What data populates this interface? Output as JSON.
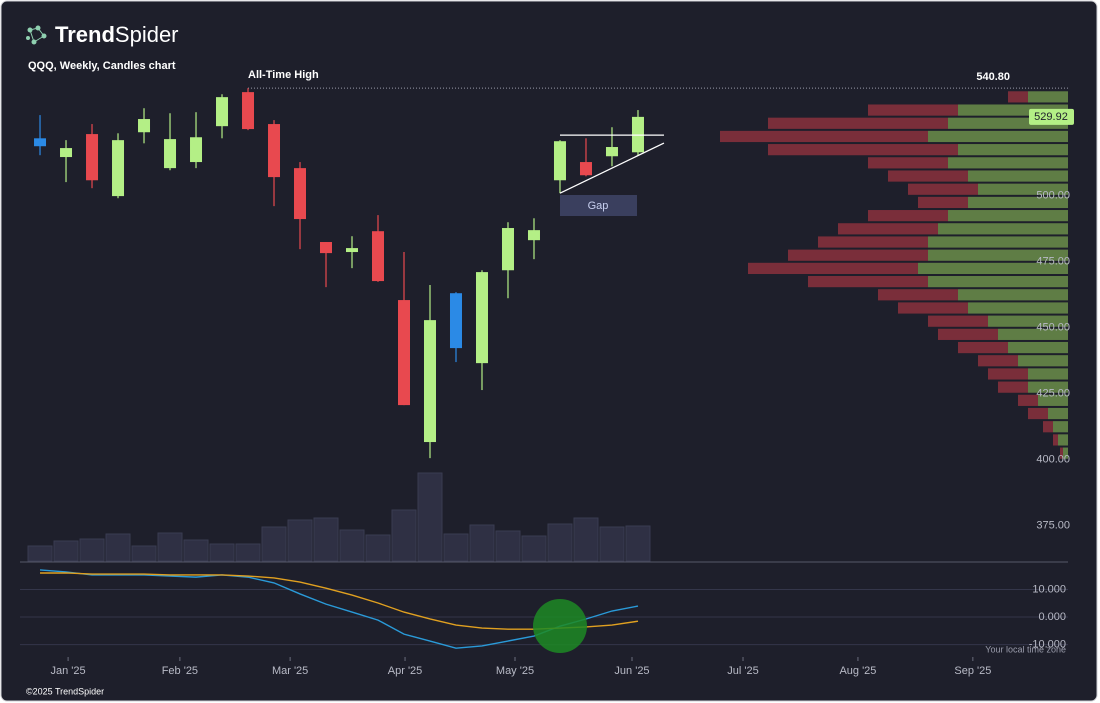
{
  "logo": {
    "bold": "Trend",
    "light": "Spider"
  },
  "footer": "©2025 TrendSpider",
  "timezone": "Your local time zone",
  "chart_data": {
    "type": "candlestick",
    "title": "QQQ, Weekly, Candles chart",
    "x": [
      0,
      1,
      2,
      3,
      4,
      5,
      6,
      7,
      8,
      9,
      10,
      11,
      12,
      13,
      14,
      15,
      16,
      17,
      18,
      19,
      20,
      21,
      22,
      23
    ],
    "open": [
      518.8,
      514.7,
      523.4,
      499.9,
      524.1,
      510.5,
      512.8,
      526.4,
      539.3,
      527.2,
      510.5,
      482.5,
      478.7,
      486.6,
      460.5,
      406.7,
      442.3,
      436.6,
      471.8,
      483.2,
      505.9,
      512.8,
      515.0,
      516.5
    ],
    "high": [
      530.6,
      521.1,
      527.2,
      523.7,
      533.2,
      531.3,
      531.7,
      538.5,
      540.8,
      528.7,
      512.8,
      482.5,
      484.7,
      492.7,
      478.7,
      466.2,
      463.5,
      471.8,
      490.0,
      491.5,
      521.1,
      521.8,
      526.0,
      532.5
    ],
    "low": [
      515.4,
      505.2,
      502.9,
      499.1,
      519.9,
      509.7,
      510.5,
      521.8,
      524.9,
      496.1,
      479.8,
      465.4,
      472.6,
      467.4,
      420.7,
      400.6,
      437.0,
      426.4,
      461.2,
      476.0,
      501.0,
      507.4,
      511.2,
      515.4
    ],
    "close": [
      521.8,
      518.1,
      505.9,
      521.1,
      529.1,
      521.5,
      522.2,
      537.4,
      525.3,
      507.1,
      491.2,
      478.3,
      480.2,
      467.7,
      420.7,
      452.9,
      463.1,
      471.1,
      487.8,
      487.0,
      520.7,
      507.8,
      518.5,
      529.92
    ],
    "up_color": "#b4ef86",
    "down_color": "#e8494f",
    "highlight_color": "#2b8ae6",
    "highlighted": [
      0,
      16
    ],
    "xlim": [
      -0.77,
      39.54
    ],
    "xticks": [
      {
        "value": 1.08,
        "label": "Jan '25"
      },
      {
        "value": 5.38,
        "label": "Feb '25"
      },
      {
        "value": 9.62,
        "label": "Mar '25"
      },
      {
        "value": 14.04,
        "label": "Apr '25"
      },
      {
        "value": 18.27,
        "label": "May '25"
      },
      {
        "value": 22.77,
        "label": "Jun '25"
      },
      {
        "value": 27.04,
        "label": "Jul '25"
      },
      {
        "value": 31.46,
        "label": "Aug '25"
      },
      {
        "value": 35.88,
        "label": "Sep '25"
      }
    ],
    "ylim": [
      362,
      542
    ],
    "yticks": [
      {
        "value": 375,
        "label": "375.00"
      },
      {
        "value": 400,
        "label": "400.00"
      },
      {
        "value": 425,
        "label": "425.00"
      },
      {
        "value": 450,
        "label": "450.00"
      },
      {
        "value": 475,
        "label": "475.00"
      },
      {
        "value": 500,
        "label": "500.00"
      }
    ],
    "ath": {
      "label": "All-Time High",
      "value": 540.8,
      "value_label": "540.80"
    },
    "last_price": 529.92,
    "gap_label": "Gap",
    "trendlines": [
      {
        "x": [
          20,
          24
        ],
        "y": [
          523.0,
          523.0
        ]
      },
      {
        "x": [
          20,
          24
        ],
        "y": [
          501.0,
          520.0
        ]
      }
    ],
    "volume": {
      "values": [
        15,
        20,
        22,
        27,
        15,
        28,
        21,
        17,
        17,
        34,
        41,
        43,
        31,
        26,
        51,
        88,
        27,
        36,
        30,
        25,
        37,
        43,
        34,
        35
      ],
      "ylim": [
        0,
        100
      ],
      "color": "#2f3044"
    },
    "profile": {
      "levels": [
        537.5,
        532.5,
        527.5,
        522.5,
        517.5,
        512.5,
        507.5,
        502.5,
        497.5,
        492.5,
        487.5,
        482.5,
        477.5,
        472.5,
        467.5,
        462.5,
        457.5,
        452.5,
        447.5,
        442.5,
        437.5,
        432.5,
        427.5,
        422.5,
        417.5,
        412.5,
        407.5,
        402.5
      ],
      "up": [
        40,
        110,
        120,
        140,
        110,
        120,
        100,
        90,
        100,
        120,
        130,
        140,
        140,
        150,
        140,
        110,
        100,
        80,
        70,
        60,
        50,
        40,
        40,
        30,
        20,
        15,
        10,
        5
      ],
      "down": [
        20,
        90,
        180,
        208,
        190,
        80,
        80,
        70,
        50,
        80,
        100,
        110,
        140,
        170,
        120,
        80,
        70,
        60,
        60,
        50,
        40,
        40,
        30,
        20,
        20,
        10,
        5,
        3
      ],
      "xlim": [
        0,
        400
      ],
      "up_color": "#5f7d45",
      "down_color": "#7a2e3a"
    },
    "indicator": {
      "ylim": [
        -14.5,
        18.9
      ],
      "yticks": [
        {
          "value": 10,
          "label": "10.000"
        },
        {
          "value": 0,
          "label": "0.000"
        },
        {
          "value": -10,
          "label": "-10.000"
        }
      ],
      "series": [
        {
          "color": "#2a9ad8",
          "values": [
            17.1,
            16.4,
            15.3,
            15.3,
            15.3,
            14.9,
            14.5,
            15.3,
            14.5,
            12.4,
            8.4,
            4.7,
            1.8,
            -1.1,
            -6.2,
            -8.7,
            -11.3,
            -10.5,
            -8.7,
            -6.9,
            -3.3,
            -0.7,
            2.2,
            4.0
          ]
        },
        {
          "color": "#e0a020",
          "values": [
            16.0,
            16.0,
            15.6,
            15.6,
            15.6,
            15.3,
            15.3,
            15.3,
            14.9,
            14.2,
            12.7,
            10.5,
            8.0,
            5.1,
            1.8,
            -0.7,
            -2.9,
            -4.0,
            -4.4,
            -4.4,
            -4.0,
            -3.6,
            -2.9,
            -1.5
          ]
        }
      ]
    }
  }
}
